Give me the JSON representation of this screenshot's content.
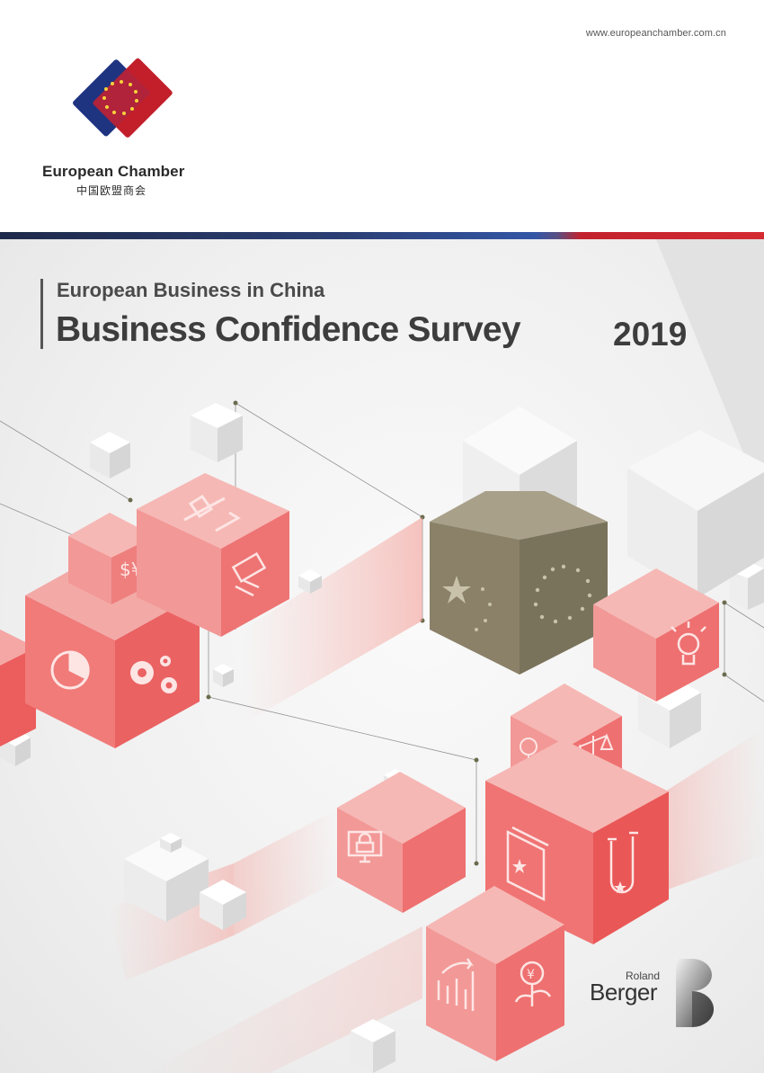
{
  "header": {
    "url": "www.europeanchamber.com.cn",
    "org_name": "European Chamber",
    "org_name_cn": "中国欧盟商会"
  },
  "cover": {
    "subtitle": "European Business in China",
    "title": "Business Confidence Survey",
    "year": "2019"
  },
  "partner": {
    "line1": "Roland",
    "line2": "Berger"
  },
  "colors": {
    "eu_blue": "#1f3480",
    "eu_red": "#c21f2b",
    "cube_red": "#ee6a6a",
    "cube_gold": "#8a8168"
  },
  "icons": [
    "pie-chart-icon",
    "gears-icon",
    "currency-icon",
    "microscope-icon",
    "money-exchange-icon",
    "china-flag-icon",
    "eu-flag-icon",
    "lightbulb-icon",
    "computer-lock-icon",
    "soe-tree-icon",
    "scales-icon",
    "book-china-icon",
    "test-tube-icon",
    "growth-chart-icon",
    "yuan-plant-icon"
  ]
}
